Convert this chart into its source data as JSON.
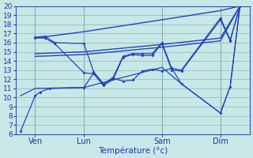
{
  "background_color": "#c8e8e8",
  "grid_color": "#99bbbb",
  "line_color": "#2244bb",
  "vline_color": "#5577aa",
  "xlabel": "Température (°c)",
  "ylim": [
    6,
    20
  ],
  "xlim": [
    0,
    24
  ],
  "yticks": [
    6,
    7,
    8,
    9,
    10,
    11,
    12,
    13,
    14,
    15,
    16,
    17,
    18,
    19,
    20
  ],
  "xtick_positions": [
    2,
    7,
    15,
    21
  ],
  "xtick_labels": [
    "Ven",
    "Lun",
    "Sam",
    "Dim"
  ],
  "vline_positions": [
    2,
    7,
    15,
    21
  ],
  "series": [
    {
      "x": [
        2,
        7,
        15,
        21,
        23
      ],
      "y": [
        16.5,
        17.2,
        18.5,
        19.5,
        20.0
      ],
      "marker": false,
      "lw": 1.0
    },
    {
      "x": [
        2,
        7,
        15,
        21,
        23
      ],
      "y": [
        14.8,
        15.0,
        15.8,
        16.5,
        20.0
      ],
      "marker": false,
      "lw": 1.0
    },
    {
      "x": [
        2,
        7,
        15,
        21,
        23
      ],
      "y": [
        14.5,
        14.7,
        15.5,
        16.2,
        20.0
      ],
      "marker": false,
      "lw": 1.0
    },
    {
      "x": [
        2,
        3,
        4,
        7,
        8,
        9,
        10,
        11,
        12,
        13,
        14,
        15,
        16,
        17,
        21,
        22,
        23
      ],
      "y": [
        16.6,
        16.7,
        16.0,
        15.9,
        12.8,
        11.5,
        12.2,
        14.5,
        14.8,
        14.8,
        14.8,
        16.0,
        13.2,
        13.0,
        18.7,
        16.3,
        20.0
      ],
      "marker": true,
      "lw": 0.9
    },
    {
      "x": [
        2,
        3,
        4,
        7,
        8,
        9,
        10,
        11,
        12,
        13,
        14,
        15,
        16,
        17,
        21,
        22,
        23
      ],
      "y": [
        16.5,
        16.5,
        15.9,
        12.7,
        12.6,
        11.3,
        12.0,
        14.4,
        14.7,
        14.6,
        14.6,
        15.9,
        13.0,
        12.9,
        18.5,
        16.2,
        20.0
      ],
      "marker": true,
      "lw": 0.9
    },
    {
      "x": [
        0.5,
        2,
        2.5,
        3.5,
        7,
        8,
        9,
        10,
        11,
        12,
        13,
        14,
        15,
        16,
        17,
        21,
        22,
        23
      ],
      "y": [
        6.3,
        10.2,
        10.6,
        11.0,
        11.1,
        12.7,
        11.5,
        12.1,
        11.8,
        11.9,
        12.9,
        13.1,
        12.9,
        13.2,
        11.5,
        8.3,
        11.2,
        20.0
      ],
      "marker": true,
      "lw": 0.9
    },
    {
      "x": [
        0.5,
        2,
        7,
        15,
        17,
        21,
        22,
        23
      ],
      "y": [
        10.2,
        11.0,
        11.1,
        13.3,
        11.5,
        8.3,
        11.2,
        20.0
      ],
      "marker": false,
      "lw": 0.9
    }
  ]
}
